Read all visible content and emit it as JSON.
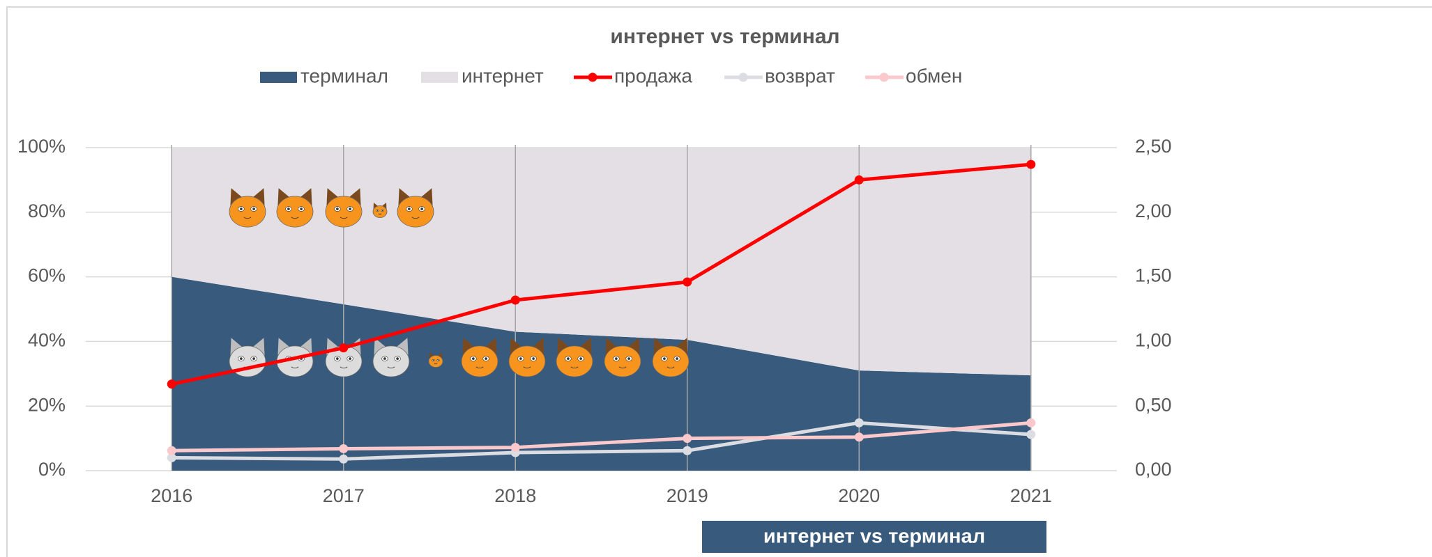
{
  "chart_data": {
    "type": "area-line",
    "title": "интернет vs терминал",
    "annotation": "интернет vs терминал",
    "categories": [
      "2016",
      "2017",
      "2018",
      "2019",
      "2020",
      "2021"
    ],
    "series": [
      {
        "name": "терминал",
        "kind": "area",
        "color": "#375a7d",
        "values": [
          60,
          51.5,
          43,
          40.5,
          31,
          29.5
        ]
      },
      {
        "name": "интернет",
        "kind": "area",
        "color": "#e3dfe4",
        "values": [
          40,
          48.5,
          57,
          59.5,
          69,
          70.5
        ]
      },
      {
        "name": "продажа",
        "kind": "line",
        "axis": "y2",
        "color": "#ff0000",
        "values": [
          0.67,
          0.95,
          1.32,
          1.46,
          2.25,
          2.37
        ]
      },
      {
        "name": "возврат",
        "kind": "line",
        "axis": "y2",
        "color": "#dcdde2",
        "values": [
          0.1,
          0.09,
          0.14,
          0.155,
          0.37,
          0.28
        ]
      },
      {
        "name": "обмен",
        "kind": "line",
        "axis": "y2",
        "color": "#fbc8cc",
        "values": [
          0.155,
          0.17,
          0.18,
          0.25,
          0.26,
          0.37
        ]
      }
    ],
    "ylim": [
      0,
      100
    ],
    "yticks": [
      {
        "value": 0,
        "label": "0%"
      },
      {
        "value": 20,
        "label": "20%"
      },
      {
        "value": 40,
        "label": "40%"
      },
      {
        "value": 60,
        "label": "60%"
      },
      {
        "value": 80,
        "label": "80%"
      },
      {
        "value": 100,
        "label": "100%"
      }
    ],
    "y2lim": [
      0,
      2.5
    ],
    "y2ticks": [
      {
        "value": 0,
        "label": "0,00"
      },
      {
        "value": 0.5,
        "label": "0,50"
      },
      {
        "value": 1,
        "label": "1,00"
      },
      {
        "value": 1.5,
        "label": "1,50"
      },
      {
        "value": 2,
        "label": "2,00"
      },
      {
        "value": 2.5,
        "label": "2,50"
      }
    ],
    "grid": true,
    "legend": "top"
  }
}
